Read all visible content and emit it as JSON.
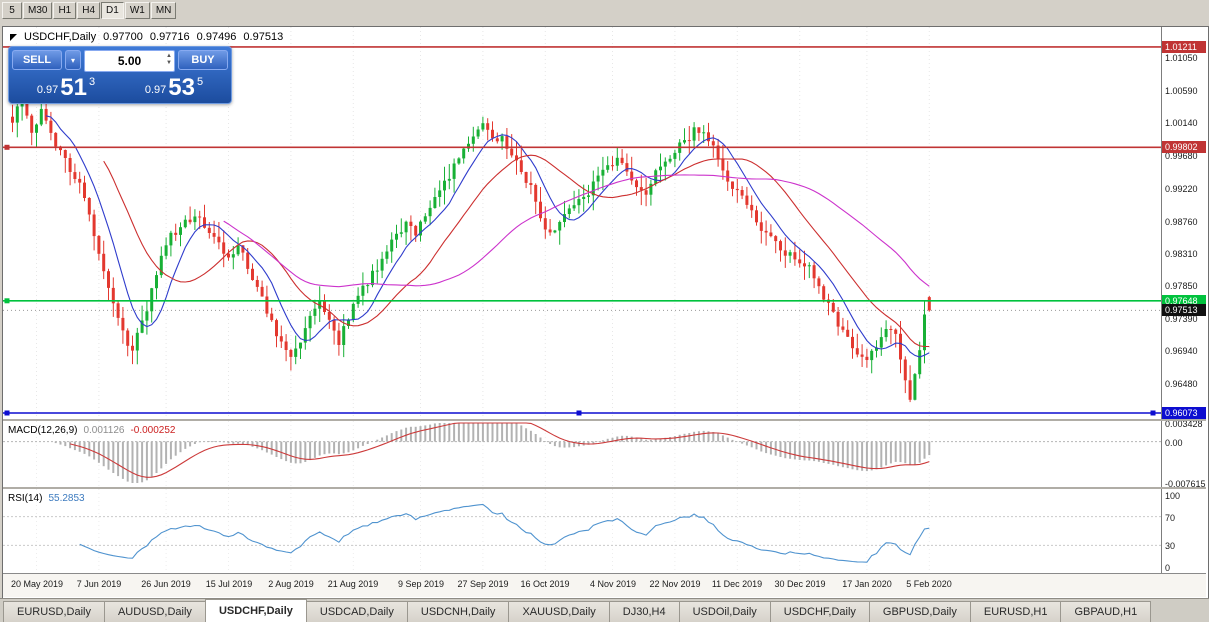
{
  "toolbar": {
    "timeframes": [
      "5",
      "M30",
      "H1",
      "H4",
      "D1",
      "W1",
      "MN"
    ],
    "active": "D1"
  },
  "header": {
    "symbol": "USDCHF,Daily",
    "open": "0.97700",
    "high": "0.97716",
    "low": "0.97496",
    "close": "0.97513"
  },
  "trade_panel": {
    "sell_label": "SELL",
    "buy_label": "BUY",
    "volume": "5.00",
    "sell_price": {
      "prefix": "0.97",
      "big": "51",
      "sup": "3"
    },
    "buy_price": {
      "prefix": "0.97",
      "big": "53",
      "sup": "5"
    }
  },
  "colors": {
    "up": "#18b035",
    "down": "#e3382f",
    "ma_fast": "#2f3ccc",
    "ma_mid": "#cc2f2f",
    "ma_slow": "#cc33cc",
    "hline_red": "#c03434",
    "hline_green": "#00c23d",
    "hline_blue": "#0d0dd0",
    "macd_hist": "#b2b2b2",
    "macd_signal": "#cc3a3a",
    "rsi_line": "#4f93cf",
    "bid_tag_bg": "#111111"
  },
  "price_axis": {
    "labels": [
      {
        "text": "1.01050",
        "price": 1.0105
      },
      {
        "text": "1.00590",
        "price": 1.0059
      },
      {
        "text": "1.00140",
        "price": 1.0014
      },
      {
        "text": "0.99680",
        "price": 0.9968
      },
      {
        "text": "0.99220",
        "price": 0.9922
      },
      {
        "text": "0.98760",
        "price": 0.9876
      },
      {
        "text": "0.98310",
        "price": 0.9831
      },
      {
        "text": "0.97850",
        "price": 0.9785
      },
      {
        "text": "0.97390",
        "price": 0.9739
      },
      {
        "text": "0.96940",
        "price": 0.9694
      },
      {
        "text": "0.96480",
        "price": 0.9648
      }
    ],
    "tags": [
      {
        "text": "1.01211",
        "price": 1.01211,
        "bg": "#c03434"
      },
      {
        "text": "0.99802",
        "price": 0.99802,
        "bg": "#c03434"
      },
      {
        "text": "0.97648",
        "price": 0.97648,
        "bg": "#00c23d"
      },
      {
        "text": "0.97513",
        "price": 0.97513,
        "bg": "#111111"
      },
      {
        "text": "0.96073",
        "price": 0.96073,
        "bg": "#0d0dd0"
      }
    ]
  },
  "macd_panel": {
    "label": "MACD(12,26,9)",
    "value_hist": "0.001126",
    "value_signal": "-0.000252",
    "axis": [
      {
        "text": "0.003428",
        "v": 0.003428
      },
      {
        "text": "0.00",
        "v": 0
      },
      {
        "text": "-0.007615",
        "v": -0.007615
      }
    ]
  },
  "rsi_panel": {
    "label": "RSI(14)",
    "value": "55.2853",
    "axis": [
      {
        "text": "100",
        "v": 100
      },
      {
        "text": "70",
        "v": 70
      },
      {
        "text": "30",
        "v": 30
      },
      {
        "text": "0",
        "v": 0
      }
    ],
    "levels": [
      70,
      30
    ]
  },
  "tabs": [
    {
      "label": "EURUSD,Daily",
      "active": false
    },
    {
      "label": "AUDUSD,Daily",
      "active": false
    },
    {
      "label": "USDCHF,Daily",
      "active": true
    },
    {
      "label": "USDCAD,Daily",
      "active": false
    },
    {
      "label": "USDCNH,Daily",
      "active": false
    },
    {
      "label": "XAUUSD,Daily",
      "active": false
    },
    {
      "label": "DJ30,H4",
      "active": false
    },
    {
      "label": "USDOil,Daily",
      "active": false
    },
    {
      "label": "USDCHF,Daily",
      "active": false
    },
    {
      "label": "GBPUSD,Daily",
      "active": false
    },
    {
      "label": "EURUSD,H1",
      "active": false
    },
    {
      "label": "GBPAUD,H1",
      "active": false
    }
  ],
  "chart_data": {
    "type": "candlestick",
    "symbol": "USDCHF",
    "period": "Daily",
    "n_candles": 192,
    "visible_range": {
      "price_top": 1.01491,
      "price_bottom": 0.95989
    },
    "x_tick_labels": [
      "20 May 2019",
      "7 Jun 2019",
      "26 Jun 2019",
      "15 Jul 2019",
      "2 Aug 2019",
      "21 Aug 2019",
      "9 Sep 2019",
      "27 Sep 2019",
      "16 Oct 2019",
      "4 Nov 2019",
      "22 Nov 2019",
      "11 Dec 2019",
      "30 Dec 2019",
      "17 Jan 2020",
      "5 Feb 2020"
    ],
    "last_ohlc": {
      "open": 0.977,
      "high": 0.97716,
      "low": 0.97496,
      "close": 0.97513
    },
    "bid": 0.97513,
    "price_path": [
      [
        0,
        1.002
      ],
      [
        2,
        1.0048
      ],
      [
        4,
        0.9995
      ],
      [
        6,
        1.0038
      ],
      [
        8,
        1.0
      ],
      [
        11,
        0.9962
      ],
      [
        14,
        0.993
      ],
      [
        17,
        0.9862
      ],
      [
        20,
        0.978
      ],
      [
        23,
        0.9718
      ],
      [
        25,
        0.9698
      ],
      [
        27,
        0.9732
      ],
      [
        29,
        0.978
      ],
      [
        31,
        0.9822
      ],
      [
        33,
        0.9855
      ],
      [
        36,
        0.9878
      ],
      [
        39,
        0.9885
      ],
      [
        42,
        0.985
      ],
      [
        45,
        0.9828
      ],
      [
        47,
        0.9845
      ],
      [
        49,
        0.981
      ],
      [
        52,
        0.9768
      ],
      [
        55,
        0.972
      ],
      [
        58,
        0.9688
      ],
      [
        60,
        0.9712
      ],
      [
        62,
        0.9745
      ],
      [
        64,
        0.9762
      ],
      [
        66,
        0.9735
      ],
      [
        68,
        0.9705
      ],
      [
        70,
        0.9742
      ],
      [
        72,
        0.9772
      ],
      [
        74,
        0.9792
      ],
      [
        76,
        0.9812
      ],
      [
        78,
        0.984
      ],
      [
        80,
        0.9858
      ],
      [
        82,
        0.9872
      ],
      [
        84,
        0.9862
      ],
      [
        86,
        0.9888
      ],
      [
        88,
        0.9908
      ],
      [
        90,
        0.9932
      ],
      [
        92,
        0.9952
      ],
      [
        94,
        0.9972
      ],
      [
        96,
        0.9992
      ],
      [
        98,
        1.0012
      ],
      [
        100,
        0.9988
      ],
      [
        102,
        0.9996
      ],
      [
        104,
        0.9972
      ],
      [
        106,
        0.9945
      ],
      [
        108,
        0.9928
      ],
      [
        110,
        0.9878
      ],
      [
        112,
        0.9856
      ],
      [
        114,
        0.9878
      ],
      [
        116,
        0.9896
      ],
      [
        118,
        0.9906
      ],
      [
        120,
        0.9916
      ],
      [
        122,
        0.9936
      ],
      [
        124,
        0.995
      ],
      [
        126,
        0.9964
      ],
      [
        128,
        0.9952
      ],
      [
        130,
        0.9928
      ],
      [
        132,
        0.992
      ],
      [
        134,
        0.9942
      ],
      [
        136,
        0.9962
      ],
      [
        138,
        0.9976
      ],
      [
        140,
        0.9986
      ],
      [
        142,
        1.0006
      ],
      [
        144,
        0.9998
      ],
      [
        146,
        0.9978
      ],
      [
        148,
        0.9948
      ],
      [
        150,
        0.9928
      ],
      [
        152,
        0.9908
      ],
      [
        154,
        0.9888
      ],
      [
        156,
        0.9868
      ],
      [
        158,
        0.9852
      ],
      [
        160,
        0.9838
      ],
      [
        162,
        0.9828
      ],
      [
        164,
        0.9818
      ],
      [
        166,
        0.9812
      ],
      [
        168,
        0.9786
      ],
      [
        170,
        0.9758
      ],
      [
        172,
        0.9728
      ],
      [
        174,
        0.9708
      ],
      [
        176,
        0.9692
      ],
      [
        178,
        0.9682
      ],
      [
        180,
        0.97
      ],
      [
        182,
        0.9725
      ],
      [
        184,
        0.9715
      ],
      [
        185,
        0.9685
      ],
      [
        187,
        0.963
      ],
      [
        188,
        0.966
      ],
      [
        189,
        0.97
      ],
      [
        190,
        0.9745
      ],
      [
        191,
        0.9751
      ]
    ],
    "hlines": [
      {
        "price": 1.01211,
        "color_key": "hline_red",
        "handles": []
      },
      {
        "price": 0.99802,
        "color_key": "hline_red",
        "handles": [
          4
        ]
      },
      {
        "price": 0.97648,
        "color_key": "hline_green",
        "handles": [
          4
        ]
      },
      {
        "price": 0.96073,
        "color_key": "hline_blue",
        "handles": [
          4,
          576,
          1150
        ]
      }
    ],
    "moving_averages": [
      {
        "color_key": "ma_fast",
        "period": 8
      },
      {
        "color_key": "ma_mid",
        "period": 20
      },
      {
        "color_key": "ma_slow",
        "period": 45
      }
    ],
    "indicators": {
      "macd": {
        "fast": 12,
        "slow": 26,
        "signal": 9,
        "current_hist": 0.001126,
        "current_signal": -0.000252,
        "scale_max": 0.003428,
        "scale_min": -0.007615
      },
      "rsi": {
        "period": 14,
        "current": 55.2853,
        "scale": [
          0,
          100
        ],
        "levels": [
          70,
          30
        ]
      }
    }
  }
}
